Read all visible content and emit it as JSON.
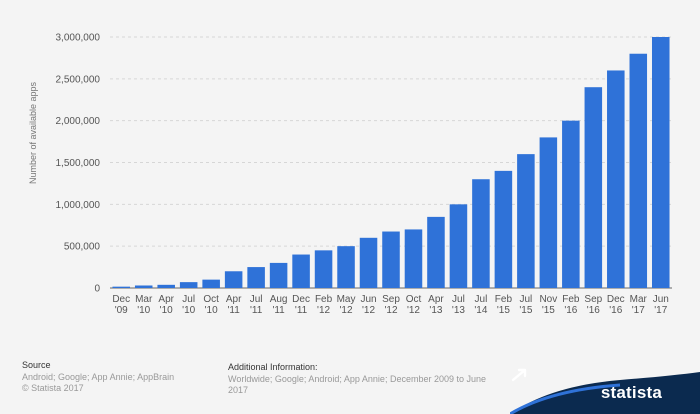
{
  "chart_data": {
    "type": "bar",
    "ylabel": "Number of available apps",
    "xlabel": "",
    "title": "",
    "ylim": [
      0,
      3000000
    ],
    "yticks": [
      0,
      500000,
      1000000,
      1500000,
      2000000,
      2500000,
      3000000
    ],
    "ytick_labels": [
      "0",
      "500,000",
      "1,000,000",
      "1,500,000",
      "2,000,000",
      "2,500,000",
      "3,000,000"
    ],
    "grid": "horizontal dashed",
    "bar_color": "#2f72d8",
    "categories": [
      [
        "Dec",
        "'09"
      ],
      [
        "Mar",
        "'10"
      ],
      [
        "Apr",
        "'10"
      ],
      [
        "Jul",
        "'10"
      ],
      [
        "Oct",
        "'10"
      ],
      [
        "Apr",
        "'11"
      ],
      [
        "Jul",
        "'11"
      ],
      [
        "Aug",
        "'11"
      ],
      [
        "Dec",
        "'11"
      ],
      [
        "Feb",
        "'12"
      ],
      [
        "May",
        "'12"
      ],
      [
        "Jun",
        "'12"
      ],
      [
        "Sep",
        "'12"
      ],
      [
        "Oct",
        "'12"
      ],
      [
        "Apr",
        "'13"
      ],
      [
        "Jul",
        "'13"
      ],
      [
        "Jul",
        "'14"
      ],
      [
        "Feb",
        "'15"
      ],
      [
        "Jul",
        "'15"
      ],
      [
        "Nov",
        "'15"
      ],
      [
        "Feb",
        "'16"
      ],
      [
        "Sep",
        "'16"
      ],
      [
        "Dec",
        "'16"
      ],
      [
        "Mar",
        "'17"
      ],
      [
        "Jun",
        "'17"
      ]
    ],
    "values": [
      16000,
      30000,
      38000,
      70000,
      100000,
      200000,
      250000,
      300000,
      400000,
      450000,
      500000,
      600000,
      675000,
      700000,
      850000,
      1000000,
      1300000,
      1400000,
      1600000,
      1800000,
      2000000,
      2400000,
      2600000,
      2800000,
      3000000
    ]
  },
  "footer": {
    "source_heading": "Source",
    "source_lines": [
      "Android; Google; App Annie; AppBrain",
      "© Statista 2017"
    ],
    "info_heading": "Additional Information:",
    "info_lines": [
      "Worldwide; Google; Android; App Annie; December 2009 to June",
      "2017"
    ]
  },
  "brand": {
    "name": "statista",
    "band_color": "#0b2a4f",
    "accent_color": "#2f72d8"
  }
}
